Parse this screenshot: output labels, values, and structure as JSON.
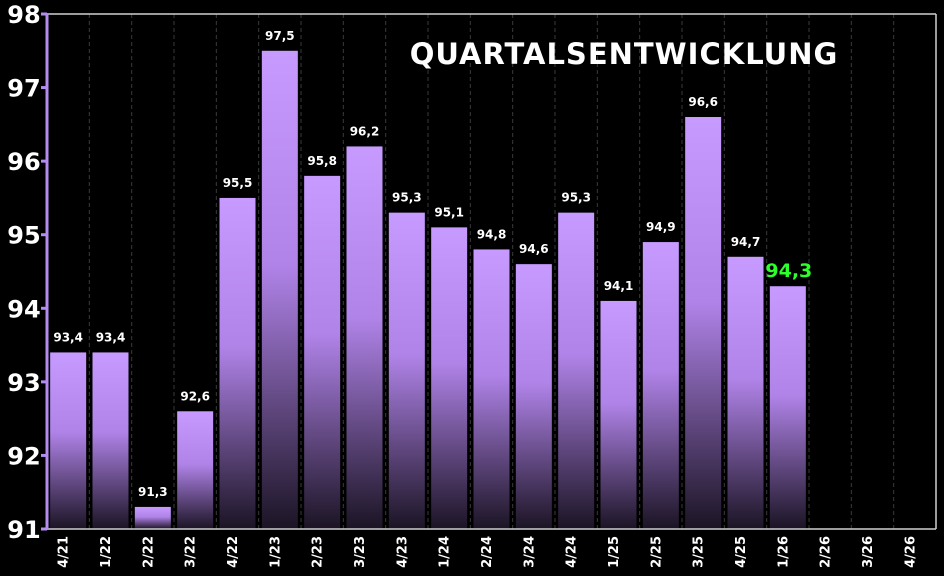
{
  "chart_data": {
    "type": "bar",
    "title": "QUARTALSENTWICKLUNG",
    "xlabel": "",
    "ylabel": "",
    "ylim": [
      91,
      98
    ],
    "yticks": [
      "91",
      "92",
      "93",
      "94",
      "95",
      "96",
      "97",
      "98"
    ],
    "categories": [
      "4/21",
      "1/22",
      "2/22",
      "3/22",
      "4/22",
      "1/23",
      "2/23",
      "3/23",
      "4/23",
      "1/24",
      "2/24",
      "3/24",
      "4/24",
      "1/25",
      "2/25",
      "3/25",
      "4/25",
      "1/26",
      "2/26",
      "3/26",
      "4/26"
    ],
    "values": [
      93.4,
      93.4,
      91.3,
      92.6,
      95.5,
      97.5,
      95.8,
      96.2,
      95.3,
      95.1,
      94.8,
      94.6,
      95.3,
      94.1,
      94.9,
      96.6,
      94.7,
      94.3,
      null,
      null,
      null
    ],
    "labels": [
      "93,4",
      "93,4",
      "91,3",
      "92,6",
      "95,5",
      "97,5",
      "95,8",
      "96,2",
      "95,3",
      "95,1",
      "94,8",
      "94,6",
      "95,3",
      "94,1",
      "94,9",
      "96,6",
      "94,7",
      "94,3",
      "",
      "",
      ""
    ],
    "highlight_index": 17,
    "grid": true,
    "colors": {
      "background": "#000000",
      "bar_top": "#c495ff",
      "bar_bottom": "#1a1422",
      "axis": "#b48cf0",
      "grid": "#3a3a3a",
      "text": "#ffffff",
      "highlight": "#2cff2c"
    }
  }
}
